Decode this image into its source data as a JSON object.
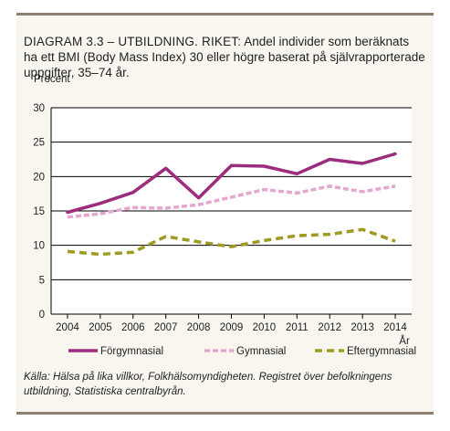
{
  "chart_data": {
    "type": "line",
    "title_lead": "DIAGRAM 3.3 – UTBILDNING. RIKET:",
    "title_rest": "Andel individer som beräknats ha ett BMI (Body Mass Index) 30 eller högre baserat på självrapporterade uppgifter, 35–74 år.",
    "ylabel": "Procent",
    "xlabel": "År",
    "x": [
      "2004",
      "2005",
      "2006",
      "2007",
      "2008",
      "2009",
      "2010",
      "2011",
      "2012",
      "2013",
      "2014"
    ],
    "yticks": [
      "0",
      "5",
      "10",
      "15",
      "20",
      "25",
      "30"
    ],
    "ylim": [
      0,
      30
    ],
    "grid": true,
    "legend_position": "bottom",
    "series": [
      {
        "name": "Förgymnasial",
        "color": "#9b2c7e",
        "style": "solid",
        "values": [
          14.8,
          16.1,
          17.7,
          21.2,
          16.9,
          21.6,
          21.5,
          20.4,
          22.5,
          21.9,
          23.3
        ]
      },
      {
        "name": "Gymnasial",
        "color": "#e6a6cf",
        "style": "dashed",
        "values": [
          14.1,
          14.6,
          15.5,
          15.4,
          15.9,
          17.0,
          18.1,
          17.6,
          18.6,
          17.8,
          18.6
        ]
      },
      {
        "name": "Eftergymnasial",
        "color": "#9e9a22",
        "style": "dashed",
        "values": [
          9.1,
          8.7,
          9.0,
          11.3,
          10.5,
          9.8,
          10.7,
          11.4,
          11.6,
          12.3,
          10.6
        ]
      }
    ]
  },
  "source": "Källa: Hälsa på lika villkor, Folkhälsomyndigheten. Registret över befolkningens utbildning, Statistiska centralbyrån."
}
